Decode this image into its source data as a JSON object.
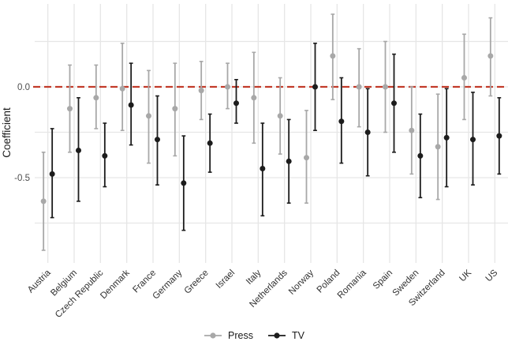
{
  "chart_data": {
    "type": "scatter",
    "subtype": "pointrange-coefficient-plot",
    "title": "",
    "xlabel": "",
    "ylabel": "Coefficient",
    "ylim": [
      -0.97,
      0.45
    ],
    "yticks": [
      0.0,
      -0.5
    ],
    "ytick_labels": [
      "0.0",
      "-0.5"
    ],
    "gridlines_y": [
      0.25,
      0.0,
      -0.25,
      -0.5,
      -0.75
    ],
    "grid": "on",
    "legend_position": "bottom-center",
    "reference_line": {
      "y": 0.0,
      "style": "dashed",
      "color": "#C23B2A"
    },
    "categories": [
      "Austria",
      "Belgium",
      "Czech Republic",
      "Denmark",
      "France",
      "Germany",
      "Greece",
      "Israel",
      "Italy",
      "Netherlands",
      "Norway",
      "Poland",
      "Romania",
      "Spain",
      "Sweden",
      "Switzerland",
      "UK",
      "US"
    ],
    "series": [
      {
        "name": "Press",
        "color": "#A8A8A8",
        "values": [
          -0.63,
          -0.12,
          -0.06,
          -0.01,
          -0.16,
          -0.12,
          -0.02,
          0.0,
          -0.06,
          -0.16,
          -0.39,
          0.17,
          0.0,
          0.0,
          -0.24,
          -0.33,
          0.05,
          0.17
        ],
        "ci_low": [
          -0.9,
          -0.36,
          -0.23,
          -0.24,
          -0.42,
          -0.38,
          -0.18,
          -0.12,
          -0.31,
          -0.37,
          -0.64,
          -0.07,
          -0.22,
          -0.25,
          -0.48,
          -0.62,
          -0.18,
          -0.05
        ],
        "ci_high": [
          -0.36,
          0.12,
          0.12,
          0.24,
          0.09,
          0.13,
          0.14,
          0.13,
          0.19,
          0.05,
          -0.13,
          0.4,
          0.21,
          0.25,
          0.0,
          -0.04,
          0.29,
          0.38
        ]
      },
      {
        "name": "TV",
        "color": "#1C1C1C",
        "values": [
          -0.48,
          -0.35,
          -0.38,
          -0.1,
          -0.29,
          -0.53,
          -0.31,
          -0.09,
          -0.45,
          -0.41,
          0.0,
          -0.19,
          -0.25,
          -0.09,
          -0.38,
          -0.28,
          -0.29,
          -0.27
        ],
        "ci_low": [
          -0.72,
          -0.63,
          -0.55,
          -0.32,
          -0.54,
          -0.79,
          -0.47,
          -0.2,
          -0.71,
          -0.64,
          -0.24,
          -0.42,
          -0.49,
          -0.36,
          -0.61,
          -0.55,
          -0.54,
          -0.48
        ],
        "ci_high": [
          -0.23,
          -0.06,
          -0.2,
          0.13,
          -0.05,
          -0.27,
          -0.15,
          0.04,
          -0.2,
          -0.18,
          0.24,
          0.05,
          -0.01,
          0.18,
          -0.15,
          -0.01,
          -0.03,
          -0.06
        ]
      }
    ]
  },
  "colors": {
    "background": "#FFFFFF",
    "gridline": "#E6E6E6",
    "axis_text": "#4D4D4D",
    "category_text": "#303030",
    "axis_title_text": "#1A1A1A",
    "reference_red": "#C23B2A"
  }
}
